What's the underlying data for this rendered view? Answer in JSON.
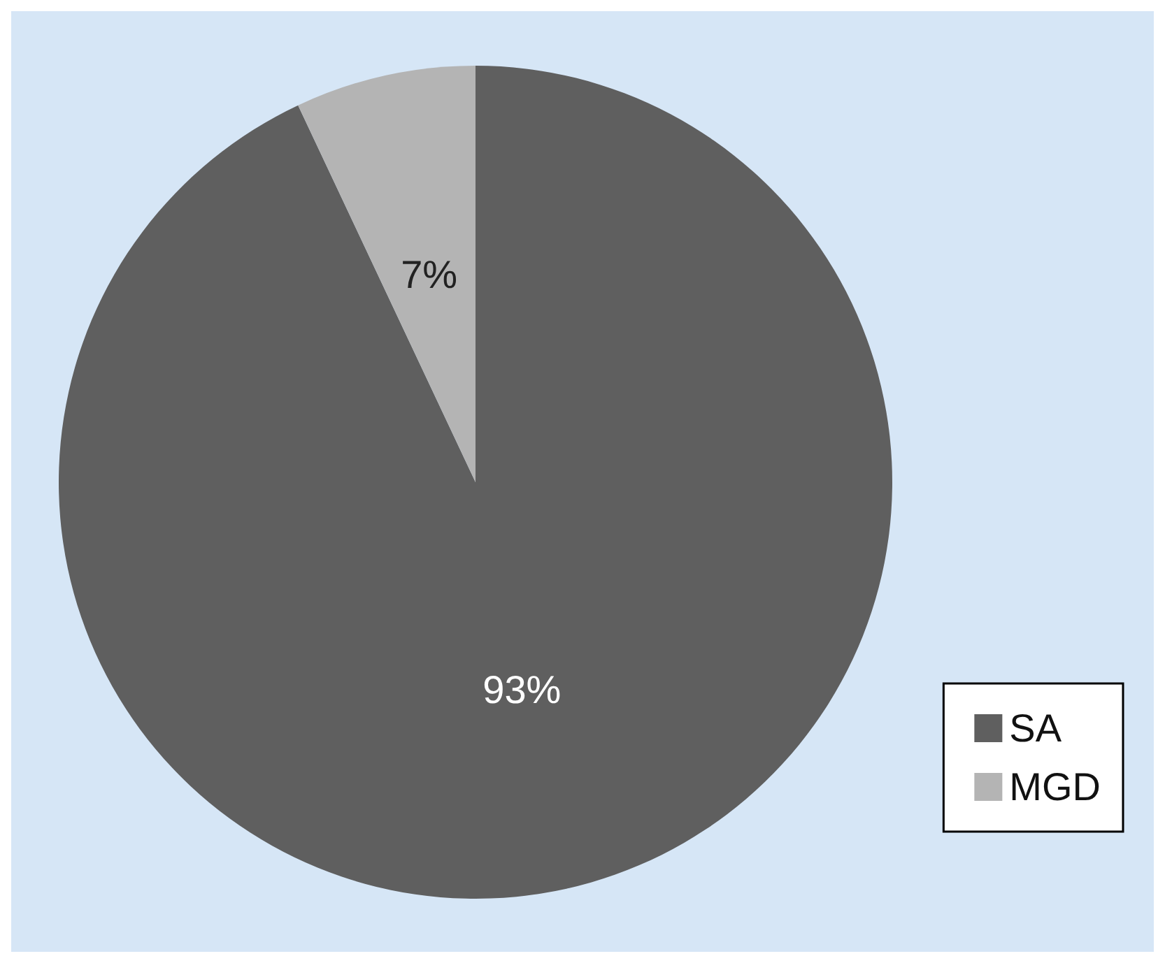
{
  "chart_data": {
    "type": "pie",
    "categories": [
      "SA",
      "MGD"
    ],
    "values": [
      93,
      7
    ],
    "colors": [
      "#5f5f5f",
      "#b4b4b4"
    ],
    "value_labels": [
      "93%",
      "7%"
    ],
    "legend": "bottom right"
  }
}
